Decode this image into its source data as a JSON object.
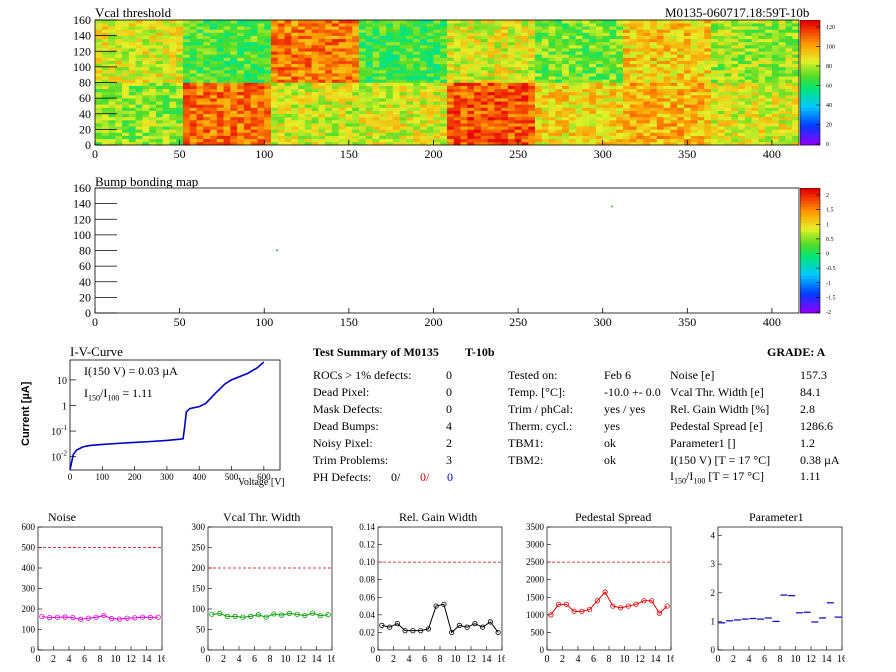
{
  "header": {
    "map_title": "Vcal threshold",
    "module_id": "M0135-060717.18:59T-10b"
  },
  "bump": {
    "title": "Bump bonding map"
  },
  "colorbars": {
    "vcal_ticks": [
      "120",
      "100",
      "80",
      "60",
      "40",
      "20",
      "0"
    ],
    "bump_ticks": [
      "2",
      "1.5",
      "1",
      "0.5",
      "0",
      "-0.5",
      "-1",
      "-1.5",
      "-2"
    ]
  },
  "iv": {
    "title": "I-V-Curve",
    "current_text": "I(150 V) = 0.03 µA",
    "ratio_label": "I",
    "ratio_sub1": "150",
    "ratio_sep": "/I",
    "ratio_sub2": "100",
    "ratio_value": "=  1.11",
    "ylabel": "Current [µA]",
    "xlabel": "Voltage [V]"
  },
  "summary": {
    "title": "Test Summary of M0135",
    "run": "T-10b",
    "grade": "GRADE:  A",
    "left": [
      {
        "label": "ROCs > 1% defects:",
        "value": "0"
      },
      {
        "label": "Dead Pixel:",
        "value": "0"
      },
      {
        "label": "Mask Defects:",
        "value": "0"
      },
      {
        "label": "Dead Bumps:",
        "value": "4"
      },
      {
        "label": "Noisy Pixel:",
        "value": "2"
      },
      {
        "label": "Trim Problems:",
        "value": "3"
      }
    ],
    "ph_label": "PH Defects:",
    "ph_values": [
      "0/",
      "0/",
      "0"
    ],
    "mid": [
      {
        "label": "Tested on:",
        "value": "Feb 6"
      },
      {
        "label": "Temp. [°C]:",
        "value": "-10.0 +- 0.0"
      },
      {
        "label": "Trim / phCal:",
        "value": "yes / yes"
      },
      {
        "label": "Therm. cycl.:",
        "value": "yes"
      },
      {
        "label": "TBM1:",
        "value": "ok"
      },
      {
        "label": "TBM2:",
        "value": "ok"
      }
    ],
    "right": [
      {
        "label": "Noise [e]",
        "value": "157.3"
      },
      {
        "label": "Vcal Thr. Width [e]",
        "value": "84.1"
      },
      {
        "label": "Rel. Gain Width [%]",
        "value": "2.8"
      },
      {
        "label": "Pedestal Spread [e]",
        "value": "1286.6"
      },
      {
        "label": "Parameter1 []",
        "value": "1.2"
      },
      {
        "label": "I(150 V) [T = 17 °C]",
        "value": "0.38 µA"
      }
    ],
    "ratio_row": {
      "label_a": "I",
      "sub1": "150",
      "label_b": "/I",
      "sub2": "100",
      "label_c": "[T = 17 °C]",
      "value": "1.11"
    }
  },
  "chart_data": [
    {
      "type": "heatmap",
      "title": "Vcal threshold",
      "xlim": [
        0,
        416
      ],
      "ylim": [
        0,
        160
      ],
      "xticks": [
        0,
        50,
        100,
        150,
        200,
        250,
        300,
        350,
        400
      ],
      "yticks": [
        0,
        20,
        40,
        60,
        80,
        100,
        120,
        140,
        160
      ],
      "zlim": [
        0,
        130
      ],
      "roc_grid": {
        "cols": 8,
        "rows": 2,
        "col_width": 52,
        "row_height": 80
      },
      "roc_means": {
        "top": [
          88,
          70,
          110,
          68,
          88,
          74,
          96,
          80
        ],
        "bottom": [
          78,
          112,
          86,
          88,
          116,
          94,
          100,
          88
        ]
      }
    },
    {
      "type": "heatmap",
      "title": "Bump bonding map",
      "xlim": [
        0,
        416
      ],
      "ylim": [
        0,
        160
      ],
      "xticks": [
        0,
        50,
        100,
        150,
        200,
        250,
        300,
        350,
        400
      ],
      "yticks": [
        0,
        20,
        40,
        60,
        80,
        100,
        120,
        140,
        160
      ],
      "zlim": [
        -2,
        2
      ],
      "points": [
        {
          "x": 107,
          "y": 80
        },
        {
          "x": 305,
          "y": 136
        }
      ]
    },
    {
      "type": "line",
      "title": "I-V-Curve",
      "xlabel": "Voltage [V]",
      "ylabel": "Current [µA]",
      "xlim": [
        0,
        650
      ],
      "ylim": [
        0.003,
        60
      ],
      "yscale": "log",
      "xticks": [
        0,
        100,
        200,
        300,
        400,
        500,
        600
      ],
      "yticks": [
        0.01,
        0.1,
        1,
        10
      ],
      "ytick_labels": [
        "10^-2",
        "10^-1",
        "1",
        "10"
      ],
      "x": [
        0,
        5,
        10,
        20,
        40,
        60,
        100,
        150,
        200,
        250,
        300,
        340,
        350,
        355,
        360,
        370,
        380,
        400,
        420,
        450,
        480,
        500,
        550,
        580,
        600
      ],
      "y": [
        0.003,
        0.006,
        0.012,
        0.018,
        0.024,
        0.027,
        0.03,
        0.033,
        0.036,
        0.039,
        0.043,
        0.048,
        0.05,
        0.15,
        0.55,
        0.75,
        0.8,
        0.9,
        1.2,
        3,
        7,
        10,
        18,
        30,
        50
      ]
    },
    {
      "type": "line",
      "title": "Noise",
      "xlim": [
        0,
        16
      ],
      "ylim": [
        0,
        600
      ],
      "xticks": [
        0,
        2,
        4,
        6,
        8,
        10,
        12,
        14,
        16
      ],
      "yticks": [
        0,
        100,
        200,
        300,
        400,
        500,
        600
      ],
      "x": [
        0,
        1,
        2,
        3,
        4,
        5,
        6,
        7,
        8,
        9,
        10,
        11,
        12,
        13,
        14,
        15
      ],
      "values": [
        163,
        158,
        160,
        161,
        158,
        150,
        155,
        160,
        168,
        153,
        151,
        155,
        157,
        160,
        159,
        160
      ],
      "limit": 500,
      "color": "#e000e0"
    },
    {
      "type": "line",
      "title": "Vcal Thr. Width",
      "xlim": [
        0,
        16
      ],
      "ylim": [
        0,
        300
      ],
      "xticks": [
        0,
        2,
        4,
        6,
        8,
        10,
        12,
        14,
        16
      ],
      "yticks": [
        0,
        50,
        100,
        150,
        200,
        250,
        300
      ],
      "x": [
        0,
        1,
        2,
        3,
        4,
        5,
        6,
        7,
        8,
        9,
        10,
        11,
        12,
        13,
        14,
        15
      ],
      "values": [
        87,
        89,
        82,
        82,
        80,
        82,
        86,
        80,
        88,
        85,
        89,
        87,
        84,
        90,
        84,
        86
      ],
      "limit": 200,
      "color": "#00a000"
    },
    {
      "type": "line",
      "title": "Rel. Gain Width",
      "xlim": [
        0,
        16
      ],
      "ylim": [
        0,
        0.14
      ],
      "xticks": [
        0,
        2,
        4,
        6,
        8,
        10,
        12,
        14,
        16
      ],
      "yticks": [
        0,
        0.02,
        0.04,
        0.06,
        0.08,
        0.1,
        0.12,
        0.14
      ],
      "x": [
        0,
        1,
        2,
        3,
        4,
        5,
        6,
        7,
        8,
        9,
        10,
        11,
        12,
        13,
        14,
        15
      ],
      "values": [
        0.028,
        0.026,
        0.03,
        0.022,
        0.022,
        0.022,
        0.024,
        0.05,
        0.052,
        0.02,
        0.028,
        0.026,
        0.03,
        0.026,
        0.032,
        0.02
      ],
      "limit": 0.1,
      "color": "#000000"
    },
    {
      "type": "line",
      "title": "Pedestal Spread",
      "xlim": [
        0,
        16
      ],
      "ylim": [
        0,
        3500
      ],
      "xticks": [
        0,
        2,
        4,
        6,
        8,
        10,
        12,
        14,
        16
      ],
      "yticks": [
        0,
        500,
        1000,
        1500,
        2000,
        2500,
        3000,
        3500
      ],
      "x": [
        0,
        1,
        2,
        3,
        4,
        5,
        6,
        7,
        8,
        9,
        10,
        11,
        12,
        13,
        14,
        15
      ],
      "values": [
        1000,
        1300,
        1300,
        1100,
        1100,
        1150,
        1400,
        1650,
        1250,
        1200,
        1250,
        1300,
        1400,
        1400,
        1050,
        1250
      ],
      "limit": 2500,
      "color": "#e00000"
    },
    {
      "type": "scatter",
      "title": "Parameter1",
      "xlim": [
        0,
        16
      ],
      "ylim": [
        0,
        4.3
      ],
      "xticks": [
        0,
        2,
        4,
        6,
        8,
        10,
        12,
        14,
        16
      ],
      "yticks": [
        0,
        1,
        2,
        3,
        4
      ],
      "x": [
        0,
        1,
        2,
        3,
        4,
        5,
        6,
        7,
        8,
        9,
        10,
        11,
        12,
        13,
        14,
        15
      ],
      "values": [
        0.95,
        1.02,
        1.05,
        1.08,
        1.1,
        1.08,
        1.12,
        1.0,
        1.92,
        1.9,
        1.3,
        1.32,
        0.98,
        1.12,
        1.65,
        1.15
      ],
      "color": "#0000c0"
    }
  ]
}
